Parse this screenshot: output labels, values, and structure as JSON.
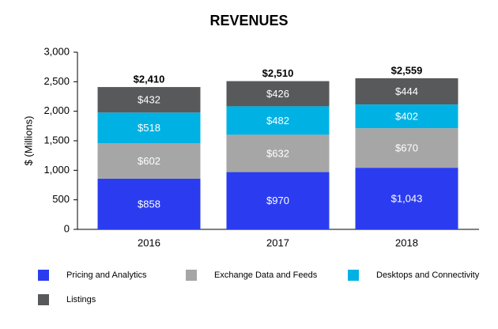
{
  "chart_data": {
    "type": "stacked_bar",
    "title": "REVENUES",
    "y_label": "$ (Millions)",
    "categories": [
      "2016",
      "2017",
      "2018"
    ],
    "series": [
      {
        "name": "Pricing and Analytics",
        "color": "#2b3cf0",
        "values": [
          858,
          970,
          1043
        ],
        "value_labels": [
          "$858",
          "$970",
          "$1,043"
        ]
      },
      {
        "name": "Exchange Data and Feeds",
        "color": "#a6a6a6",
        "values": [
          602,
          632,
          670
        ],
        "value_labels": [
          "$602",
          "$632",
          "$670"
        ]
      },
      {
        "name": "Desktops and Connectivity",
        "color": "#00b2e3",
        "values": [
          518,
          482,
          402
        ],
        "value_labels": [
          "$518",
          "$482",
          "$402"
        ]
      },
      {
        "name": "Listings",
        "color": "#58595b",
        "values": [
          432,
          426,
          444
        ],
        "value_labels": [
          "$432",
          "$426",
          "$444"
        ]
      }
    ],
    "totals": [
      2410,
      2510,
      2559
    ],
    "total_labels": [
      "$2,410",
      "$2,510",
      "$2,559"
    ],
    "ylim": [
      0,
      3000
    ],
    "yticks": [
      0,
      500,
      {
        "value": 1000,
        "label": "1,000"
      },
      {
        "value": 1500,
        "label": "1,500"
      },
      {
        "value": 2000,
        "label": "2,000"
      },
      {
        "value": 2500,
        "label": "2,500"
      },
      {
        "value": 3000,
        "label": "3,000"
      }
    ],
    "grid": false
  }
}
